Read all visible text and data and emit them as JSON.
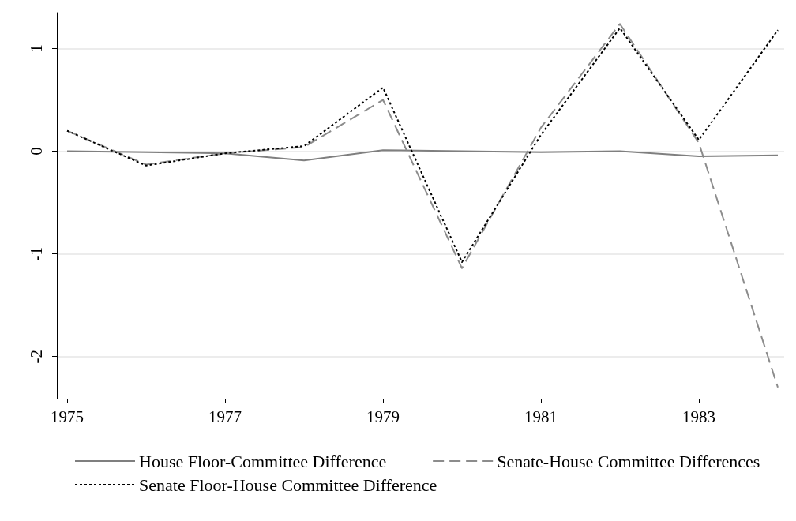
{
  "chart_data": {
    "type": "line",
    "x": [
      1975,
      1976,
      1977,
      1978,
      1979,
      1980,
      1981,
      1982,
      1983,
      1984
    ],
    "series": [
      {
        "name": "House Floor-Committee Difference",
        "color": "#7f7f7f",
        "line_style": "solid",
        "values": [
          0.0,
          -0.01,
          -0.02,
          -0.09,
          0.01,
          0.0,
          -0.01,
          0.0,
          -0.05,
          -0.04
        ]
      },
      {
        "name": "Senate-House Committee Differences",
        "color": "#8c8c8c",
        "line_style": "dashed",
        "values": [
          0.2,
          -0.13,
          -0.02,
          0.04,
          0.5,
          -1.14,
          0.23,
          1.24,
          0.08,
          -2.3
        ]
      },
      {
        "name": "Senate Floor-House Committee Difference",
        "color": "#000000",
        "line_style": "dotted",
        "values": [
          0.2,
          -0.14,
          -0.02,
          0.05,
          0.62,
          -1.08,
          0.16,
          1.2,
          0.11,
          1.18
        ]
      }
    ],
    "xlim": [
      1974.87,
      1984.08
    ],
    "xticks": [
      1975,
      1977,
      1979,
      1981,
      1983
    ],
    "ylim": [
      -2.41,
      1.35
    ],
    "yticks": [
      -2,
      -1,
      0,
      1
    ],
    "grid": "y",
    "legend": "bottom",
    "marker": "none"
  }
}
